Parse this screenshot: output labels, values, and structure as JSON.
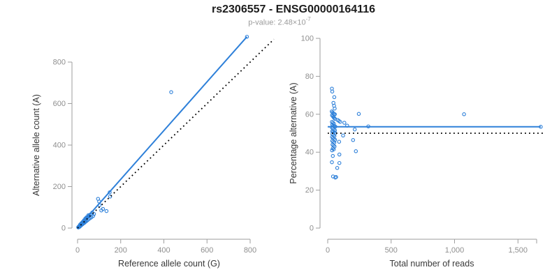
{
  "header": {
    "title": "rs2306557 - ENSG00000164116",
    "pvalue_text": "p-value: 2.48×10",
    "pvalue_exponent": "-7"
  },
  "colors": {
    "accent_blue": "#2E80D9",
    "identity_black": "#000000",
    "axis_gray": "#9e9e9e",
    "tick_label_gray": "#8f8f8f",
    "axis_title_dark": "#383838",
    "title_dark": "#1c1c1c",
    "subtitle_gray": "#9b9b9b"
  },
  "chart_data": [
    {
      "type": "scatter",
      "name": "allele-counts-scatter",
      "xlabel": "Reference allele count (G)",
      "ylabel": "Alternative allele count (A)",
      "xlim": [
        0,
        800
      ],
      "ylim": [
        0,
        800
      ],
      "x_ticks": [
        0,
        200,
        400,
        600,
        800
      ],
      "x_tick_labels": [
        "0",
        "200",
        "400",
        "600",
        "800"
      ],
      "y_ticks": [
        0,
        200,
        400,
        600,
        800
      ],
      "y_tick_labels": [
        "0",
        "200",
        "400",
        "600",
        "800"
      ],
      "grid": false,
      "legend": null,
      "points": [
        [
          3,
          4
        ],
        [
          4,
          3
        ],
        [
          5,
          6
        ],
        [
          6,
          5
        ],
        [
          7,
          8
        ],
        [
          8,
          7
        ],
        [
          8,
          10
        ],
        [
          9,
          6
        ],
        [
          10,
          11
        ],
        [
          11,
          9
        ],
        [
          12,
          13
        ],
        [
          13,
          10
        ],
        [
          14,
          16
        ],
        [
          15,
          12
        ],
        [
          16,
          18
        ],
        [
          17,
          14
        ],
        [
          18,
          21
        ],
        [
          19,
          16
        ],
        [
          20,
          23
        ],
        [
          21,
          17
        ],
        [
          22,
          26
        ],
        [
          23,
          19
        ],
        [
          25,
          28
        ],
        [
          26,
          22
        ],
        [
          28,
          31
        ],
        [
          29,
          24
        ],
        [
          31,
          35
        ],
        [
          33,
          27
        ],
        [
          35,
          40
        ],
        [
          37,
          31
        ],
        [
          39,
          44
        ],
        [
          41,
          34
        ],
        [
          43,
          49
        ],
        [
          46,
          38
        ],
        [
          48,
          54
        ],
        [
          51,
          43
        ],
        [
          54,
          60
        ],
        [
          57,
          47
        ],
        [
          60,
          66
        ],
        [
          64,
          52
        ],
        [
          68,
          75
        ],
        [
          72,
          58
        ],
        [
          76,
          68
        ],
        [
          30,
          38
        ],
        [
          24,
          30
        ],
        [
          18,
          24
        ],
        [
          12,
          17
        ],
        [
          36,
          46
        ],
        [
          42,
          52
        ],
        [
          50,
          62
        ],
        [
          95,
          141
        ],
        [
          100,
          128
        ],
        [
          102,
          111
        ],
        [
          110,
          85
        ],
        [
          118,
          92
        ],
        [
          134,
          82
        ],
        [
          149,
          172
        ],
        [
          151,
          152
        ],
        [
          434,
          655
        ],
        [
          785,
          922
        ]
      ],
      "lines": [
        {
          "name": "regression-line",
          "x1": 0,
          "y1": 0,
          "x2": 785,
          "y2": 922,
          "style": "solid",
          "color": "#2E80D9",
          "width": 2
        },
        {
          "name": "identity-line",
          "x1": 0,
          "y1": 0,
          "x2": 910,
          "y2": 910,
          "style": "dotted",
          "color": "#000000",
          "width": 1.8
        }
      ]
    },
    {
      "type": "scatter",
      "name": "percentage-vs-reads-scatter",
      "xlabel": "Total number of reads",
      "ylabel": "Percentage alternative (A)",
      "xlim": [
        0,
        1650
      ],
      "ylim": [
        0,
        100
      ],
      "x_ticks": [
        0,
        500,
        1000,
        1500
      ],
      "x_tick_labels": [
        "0",
        "500",
        "1,000",
        "1,500"
      ],
      "y_ticks": [
        0,
        20,
        40,
        60,
        80,
        100
      ],
      "y_tick_labels": [
        "0",
        "20",
        "40",
        "60",
        "80",
        "100"
      ],
      "grid": false,
      "legend": null,
      "points": [
        [
          33,
          73.5
        ],
        [
          36,
          72
        ],
        [
          52,
          69
        ],
        [
          45,
          66
        ],
        [
          50,
          64.5
        ],
        [
          55,
          63
        ],
        [
          32,
          61.5
        ],
        [
          38,
          61
        ],
        [
          44,
          60.5
        ],
        [
          50,
          60
        ],
        [
          56,
          60
        ],
        [
          34,
          59.5
        ],
        [
          40,
          59
        ],
        [
          46,
          58.5
        ],
        [
          52,
          58
        ],
        [
          58,
          57.5
        ],
        [
          78,
          57
        ],
        [
          88,
          56.5
        ],
        [
          98,
          56
        ],
        [
          33,
          56
        ],
        [
          41,
          55.5
        ],
        [
          49,
          55
        ],
        [
          36,
          54.5
        ],
        [
          44,
          54
        ],
        [
          52,
          53.8
        ],
        [
          60,
          53.5
        ],
        [
          33,
          53
        ],
        [
          41,
          52.5
        ],
        [
          49,
          52
        ],
        [
          57,
          51.5
        ],
        [
          35,
          51
        ],
        [
          43,
          50.8
        ],
        [
          51,
          50.5
        ],
        [
          59,
          50
        ],
        [
          37,
          49.5
        ],
        [
          45,
          49
        ],
        [
          53,
          48.5
        ],
        [
          34,
          48
        ],
        [
          42,
          47.5
        ],
        [
          50,
          47
        ],
        [
          58,
          46.5
        ],
        [
          36,
          46
        ],
        [
          44,
          45.5
        ],
        [
          52,
          45
        ],
        [
          38,
          44
        ],
        [
          46,
          43.5
        ],
        [
          54,
          43
        ],
        [
          40,
          42
        ],
        [
          48,
          41.5
        ],
        [
          34,
          41
        ],
        [
          90,
          45.5
        ],
        [
          92,
          38.8
        ],
        [
          40,
          38
        ],
        [
          33,
          34.7
        ],
        [
          92,
          34.3
        ],
        [
          75,
          31.7
        ],
        [
          42,
          27.2
        ],
        [
          60,
          26.6
        ],
        [
          66,
          26.9
        ],
        [
          121,
          48.8
        ],
        [
          131,
          55.5
        ],
        [
          153,
          54
        ],
        [
          200,
          46.4
        ],
        [
          213,
          52
        ],
        [
          222,
          40.5
        ],
        [
          245,
          60.2
        ],
        [
          320,
          53.6
        ],
        [
          1075,
          60
        ],
        [
          1680,
          53.4
        ]
      ],
      "lines": [
        {
          "name": "fit-line",
          "x1": 0,
          "y1": 53.4,
          "x2": 1680,
          "y2": 53.4,
          "style": "solid",
          "color": "#2E80D9",
          "width": 2
        },
        {
          "name": "reference-line-50pct",
          "x1": 0,
          "y1": 50,
          "x2": 1700,
          "y2": 50,
          "style": "dotted",
          "color": "#000000",
          "width": 1.8
        }
      ]
    }
  ]
}
